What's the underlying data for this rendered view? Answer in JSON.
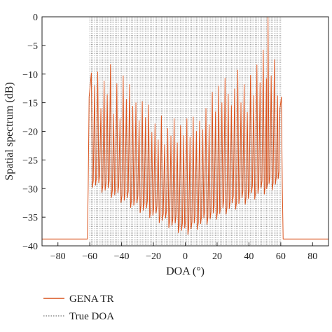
{
  "chart_data": {
    "type": "line",
    "title": "",
    "xlabel": "DOA (°)",
    "ylabel": "Spatial spectrum (dB)",
    "xlim": [
      -90,
      90
    ],
    "ylim": [
      -40,
      0
    ],
    "xticks": [
      -80,
      -60,
      -40,
      -20,
      0,
      20,
      40,
      60,
      80
    ],
    "yticks": [
      0,
      -5,
      -10,
      -15,
      -20,
      -25,
      -30,
      -35,
      -40
    ],
    "grid": false,
    "legend": {
      "placement": "bottom-left, below plot"
    },
    "colors": {
      "gena_tr": "#d9541e",
      "true_doa": "#555555",
      "axes": "#222222"
    },
    "true_doa_range": [
      -60,
      60
    ],
    "true_doa_step": 1,
    "series": [
      {
        "name": "GENA TR",
        "style": "solid",
        "baseline": -38.8,
        "sidelobe_x": [
          -90,
          -61.5
        ],
        "sidelobe_x2": [
          61.5,
          90
        ],
        "peaks": [
          [
            -59,
            -9.8
          ],
          [
            -57,
            -12.0
          ],
          [
            -55,
            -9.6
          ],
          [
            -53,
            -16.0
          ],
          [
            -51,
            -11.2
          ],
          [
            -49,
            -13.6
          ],
          [
            -47,
            -8.3
          ],
          [
            -45,
            -17.0
          ],
          [
            -43,
            -11.7
          ],
          [
            -41,
            -17.8
          ],
          [
            -39,
            -10.3
          ],
          [
            -37,
            -14.4
          ],
          [
            -35,
            -11.8
          ],
          [
            -33,
            -15.6
          ],
          [
            -31,
            -15.0
          ],
          [
            -29,
            -18.1
          ],
          [
            -27,
            -14.8
          ],
          [
            -25,
            -17.6
          ],
          [
            -23,
            -15.4
          ],
          [
            -21,
            -20.2
          ],
          [
            -19,
            -18.7
          ],
          [
            -17,
            -21.5
          ],
          [
            -15,
            -17.3
          ],
          [
            -13,
            -22.3
          ],
          [
            -11,
            -19.5
          ],
          [
            -9,
            -20.8
          ],
          [
            -7,
            -17.8
          ],
          [
            -5,
            -22.0
          ],
          [
            -3,
            -19.0
          ],
          [
            -1,
            -20.7
          ],
          [
            1,
            -17.8
          ],
          [
            3,
            -21.0
          ],
          [
            5,
            -17.5
          ],
          [
            7,
            -20.0
          ],
          [
            9,
            -18.2
          ],
          [
            11,
            -19.7
          ],
          [
            13,
            -16.0
          ],
          [
            15,
            -18.8
          ],
          [
            17,
            -13.2
          ],
          [
            19,
            -16.6
          ],
          [
            21,
            -12.1
          ],
          [
            23,
            -15.0
          ],
          [
            25,
            -10.7
          ],
          [
            27,
            -13.5
          ],
          [
            29,
            -15.5
          ],
          [
            31,
            -12.6
          ],
          [
            33,
            -9.3
          ],
          [
            35,
            -15.0
          ],
          [
            37,
            -11.8
          ],
          [
            39,
            -16.7
          ],
          [
            41,
            -10.2
          ],
          [
            43,
            -13.7
          ],
          [
            45,
            -8.4
          ],
          [
            47,
            -11.5
          ],
          [
            49,
            -5.8
          ],
          [
            51,
            -10.8
          ],
          [
            52,
            -0.1
          ],
          [
            54,
            -10.3
          ],
          [
            56,
            -7.5
          ],
          [
            58,
            -13.8
          ],
          [
            59.5,
            -16.0
          ]
        ]
      },
      {
        "name": "True DOA",
        "style": "dotted",
        "value": 0
      }
    ]
  }
}
